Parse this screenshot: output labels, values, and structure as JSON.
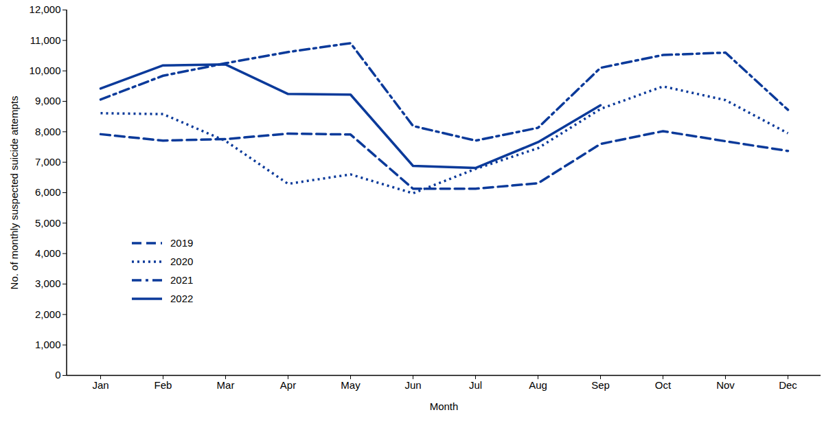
{
  "chart_data": {
    "type": "line",
    "x_label": "Month",
    "y_label": "No. of monthly suspected suicide attempts",
    "categories": [
      "Jan",
      "Feb",
      "Mar",
      "Apr",
      "May",
      "Jun",
      "Jul",
      "Aug",
      "Sep",
      "Oct",
      "Nov",
      "Dec"
    ],
    "series": [
      {
        "name": "2019",
        "color": "#0b3a9a",
        "line_style": "dashed",
        "values": [
          7920,
          7710,
          7760,
          7940,
          7910,
          6130,
          6130,
          6310,
          7600,
          8020,
          7690,
          7370
        ]
      },
      {
        "name": "2020",
        "color": "#0b3a9a",
        "line_style": "dotted",
        "values": [
          8610,
          8580,
          7700,
          6290,
          6600,
          5980,
          6780,
          7460,
          8750,
          9490,
          9040,
          7950
        ]
      },
      {
        "name": "2021",
        "color": "#0b3a9a",
        "line_style": "dashdot",
        "values": [
          9060,
          9840,
          10250,
          10620,
          10910,
          8190,
          7710,
          8130,
          10100,
          10520,
          10600,
          8720
        ]
      },
      {
        "name": "2022",
        "color": "#0b3a9a",
        "line_style": "solid",
        "values": [
          9420,
          10180,
          10210,
          9240,
          9220,
          6880,
          6810,
          7660,
          8870,
          null,
          null,
          null
        ]
      }
    ],
    "ylim": [
      0,
      12000
    ],
    "yticks": [
      0,
      {
        "value": 1000,
        "label": "1,000"
      },
      {
        "value": 2000,
        "label": "2,000"
      },
      {
        "value": 3000,
        "label": "3,000"
      },
      {
        "value": 4000,
        "label": "4,000"
      },
      {
        "value": 5000,
        "label": "5,000"
      },
      {
        "value": 6000,
        "label": "6,000"
      },
      {
        "value": 7000,
        "label": "7,000"
      },
      {
        "value": 8000,
        "label": "8,000"
      },
      {
        "value": 9000,
        "label": "9,000"
      },
      {
        "value": 10000,
        "label": "10,000"
      },
      {
        "value": 11000,
        "label": "11,000"
      },
      {
        "value": 12000,
        "label": "12,000"
      }
    ],
    "grid": false,
    "legend": "lower left"
  }
}
